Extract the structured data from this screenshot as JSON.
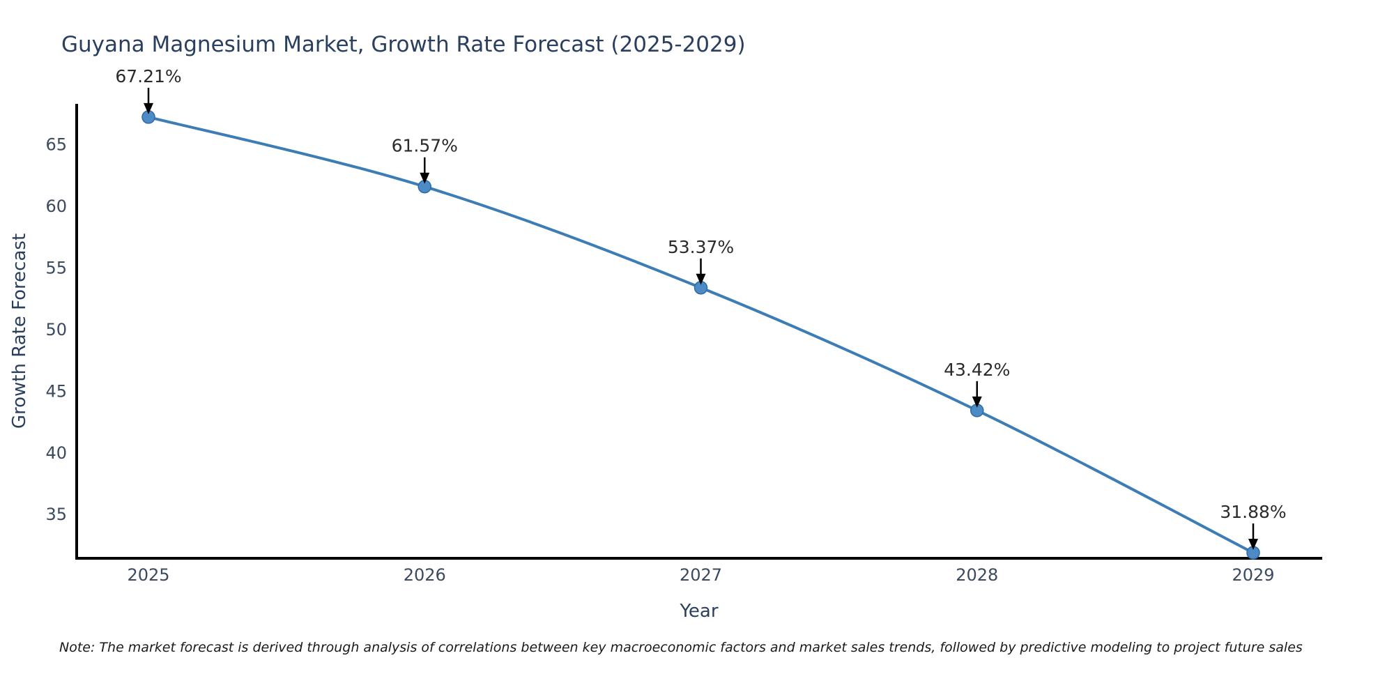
{
  "chart_data": {
    "type": "line",
    "title": "Guyana Magnesium Market, Growth Rate Forecast (2025-2029)",
    "xlabel": "Year",
    "ylabel": "Growth Rate Forecast",
    "categories": [
      "2025",
      "2026",
      "2027",
      "2028",
      "2029"
    ],
    "x": [
      2025,
      2026,
      2027,
      2028,
      2029
    ],
    "values": [
      67.21,
      61.57,
      53.37,
      43.42,
      31.88
    ],
    "point_labels": [
      "67.21%",
      "61.57%",
      "53.37%",
      "43.42%",
      "31.88%"
    ],
    "yticks": [
      35,
      40,
      45,
      50,
      55,
      60,
      65
    ],
    "ylim": [
      31.43,
      68.28
    ],
    "grid": false,
    "legend": false,
    "line_shape": "smooth",
    "note": "Note: The market forecast is derived through analysis of correlations between key macroeconomic factors and market sales trends, followed by predictive modeling to project future sales",
    "colors": {
      "line": "#3d7db6",
      "marker_fill": "#4d8bc6",
      "marker_edge": "#2f6ba3",
      "axis": "#000000",
      "annotation_arrow": "#000000",
      "title_text": "#2a3f5f",
      "tick_text": "#3b4a5f"
    }
  }
}
